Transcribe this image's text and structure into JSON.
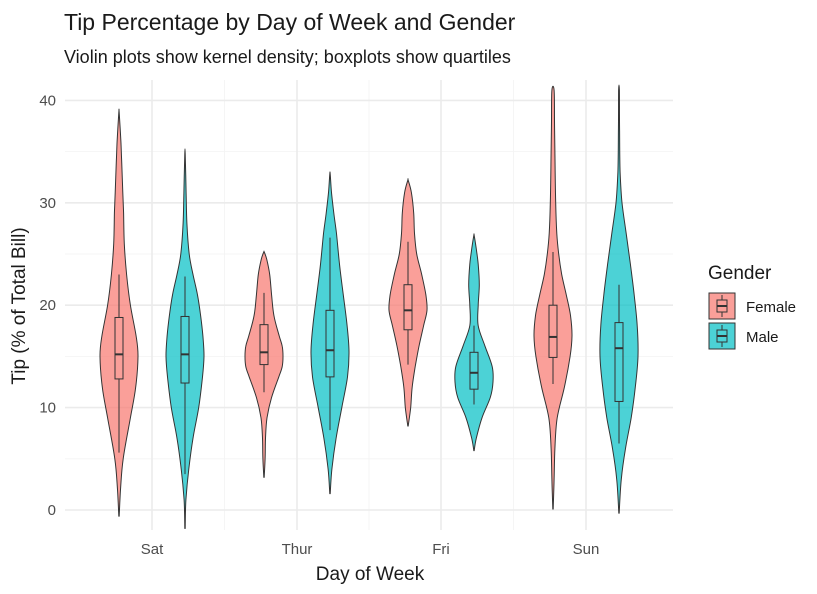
{
  "chart_data": {
    "type": "violin",
    "title": "Tip Percentage by Day of Week and Gender",
    "subtitle": "Violin plots show kernel density; boxplots show quartiles",
    "xlabel": "Day of Week",
    "ylabel": "Tip (% of Total Bill)",
    "categories": [
      "Sat",
      "Thur",
      "Fri",
      "Sun"
    ],
    "yticks": [
      "0",
      "10",
      "20",
      "30",
      "40"
    ],
    "ylim": [
      -2,
      41
    ],
    "grid": true,
    "legend": {
      "title": "Gender",
      "position": "right",
      "entries": [
        "Female",
        "Male"
      ]
    },
    "colors": {
      "Female": "#F8766D",
      "Male": "#00BFC4"
    },
    "series": [
      {
        "name": "Female",
        "boxes": [
          {
            "category": "Sat",
            "whisker_low": 5.6,
            "q1": 12.8,
            "median": 15.2,
            "q3": 18.8,
            "whisker_high": 23.0,
            "violin_min": -0.6,
            "violin_max": 38.8,
            "density": [
              [
                -0.6,
                0.01
              ],
              [
                2,
                0.08
              ],
              [
                5,
                0.22
              ],
              [
                9,
                0.6
              ],
              [
                12,
                0.88
              ],
              [
                15,
                1.0
              ],
              [
                17,
                0.9
              ],
              [
                20,
                0.6
              ],
              [
                23,
                0.4
              ],
              [
                26,
                0.28
              ],
              [
                29,
                0.24
              ],
              [
                31,
                0.2
              ],
              [
                34,
                0.14
              ],
              [
                36,
                0.1
              ],
              [
                38.8,
                0.01
              ]
            ]
          },
          {
            "category": "Thur",
            "whisker_low": 11.5,
            "q1": 14.2,
            "median": 15.4,
            "q3": 18.1,
            "whisker_high": 21.2,
            "violin_min": 3.2,
            "violin_max": 25.2,
            "density": [
              [
                3.2,
                0.01
              ],
              [
                5,
                0.06
              ],
              [
                7,
                0.08
              ],
              [
                9,
                0.16
              ],
              [
                11,
                0.4
              ],
              [
                13,
                0.78
              ],
              [
                14,
                0.96
              ],
              [
                15,
                1.0
              ],
              [
                16,
                0.96
              ],
              [
                17,
                0.8
              ],
              [
                19,
                0.52
              ],
              [
                21,
                0.4
              ],
              [
                23,
                0.3
              ],
              [
                24.5,
                0.14
              ],
              [
                25.2,
                0.01
              ]
            ]
          },
          {
            "category": "Fri",
            "whisker_low": 14.2,
            "q1": 17.6,
            "median": 19.5,
            "q3": 22.0,
            "whisker_high": 26.2,
            "violin_min": 8.2,
            "violin_max": 32.2,
            "density": [
              [
                8.2,
                0.01
              ],
              [
                10,
                0.14
              ],
              [
                12,
                0.22
              ],
              [
                14,
                0.38
              ],
              [
                16,
                0.58
              ],
              [
                18,
                0.82
              ],
              [
                19.5,
                1.0
              ],
              [
                21,
                0.94
              ],
              [
                23,
                0.72
              ],
              [
                25,
                0.46
              ],
              [
                27,
                0.34
              ],
              [
                29,
                0.3
              ],
              [
                31,
                0.18
              ],
              [
                32.2,
                0.01
              ]
            ]
          },
          {
            "category": "Sun",
            "whisker_low": 12.3,
            "q1": 14.9,
            "median": 16.9,
            "q3": 20.0,
            "whisker_high": 25.2,
            "violin_min": 0.1,
            "violin_max": 41,
            "density": [
              [
                0.1,
                0.01
              ],
              [
                3,
                0.06
              ],
              [
                6,
                0.1
              ],
              [
                9,
                0.22
              ],
              [
                12,
                0.6
              ],
              [
                15,
                0.9
              ],
              [
                17,
                1.0
              ],
              [
                19,
                0.92
              ],
              [
                21,
                0.7
              ],
              [
                23,
                0.46
              ],
              [
                25,
                0.3
              ],
              [
                27,
                0.2
              ],
              [
                30,
                0.14
              ],
              [
                35,
                0.1
              ],
              [
                38,
                0.08
              ],
              [
                41,
                0.06
              ]
            ]
          }
        ]
      },
      {
        "name": "Male",
        "boxes": [
          {
            "category": "Sat",
            "whisker_low": 3.5,
            "q1": 12.4,
            "median": 15.2,
            "q3": 18.9,
            "whisker_high": 22.8,
            "violin_min": -1.8,
            "violin_max": 34.8,
            "density": [
              [
                -1.8,
                0.01
              ],
              [
                1,
                0.05
              ],
              [
                4,
                0.2
              ],
              [
                7,
                0.42
              ],
              [
                10,
                0.72
              ],
              [
                13,
                0.92
              ],
              [
                15,
                1.0
              ],
              [
                17,
                0.94
              ],
              [
                19,
                0.82
              ],
              [
                21,
                0.66
              ],
              [
                23,
                0.42
              ],
              [
                25,
                0.22
              ],
              [
                28,
                0.1
              ],
              [
                31,
                0.06
              ],
              [
                34.8,
                0.01
              ]
            ]
          },
          {
            "category": "Thur",
            "whisker_low": 7.8,
            "q1": 13.0,
            "median": 15.6,
            "q3": 19.5,
            "whisker_high": 26.6,
            "violin_min": 1.6,
            "violin_max": 32.8,
            "density": [
              [
                1.6,
                0.01
              ],
              [
                4,
                0.1
              ],
              [
                7,
                0.32
              ],
              [
                10,
                0.62
              ],
              [
                13,
                0.92
              ],
              [
                15.5,
                1.0
              ],
              [
                18,
                0.9
              ],
              [
                21,
                0.7
              ],
              [
                24,
                0.5
              ],
              [
                27,
                0.34
              ],
              [
                29,
                0.2
              ],
              [
                31,
                0.08
              ],
              [
                32.8,
                0.01
              ]
            ]
          },
          {
            "category": "Fri",
            "whisker_low": 10.3,
            "q1": 11.8,
            "median": 13.4,
            "q3": 15.4,
            "whisker_high": 18.0,
            "violin_min": 5.8,
            "violin_max": 26.8,
            "density": [
              [
                5.8,
                0.01
              ],
              [
                7,
                0.12
              ],
              [
                9,
                0.42
              ],
              [
                11,
                0.86
              ],
              [
                12.5,
                1.0
              ],
              [
                14,
                0.96
              ],
              [
                16,
                0.58
              ],
              [
                18,
                0.22
              ],
              [
                20,
                0.22
              ],
              [
                22,
                0.28
              ],
              [
                24,
                0.22
              ],
              [
                25.5,
                0.12
              ],
              [
                26.8,
                0.01
              ]
            ]
          },
          {
            "category": "Sun",
            "whisker_low": 6.5,
            "q1": 10.6,
            "median": 15.8,
            "q3": 18.3,
            "whisker_high": 22.0,
            "violin_min": -0.3,
            "violin_max": 41,
            "density": [
              [
                -0.3,
                0.01
              ],
              [
                3,
                0.12
              ],
              [
                6,
                0.34
              ],
              [
                9,
                0.64
              ],
              [
                12,
                0.86
              ],
              [
                15,
                1.0
              ],
              [
                18,
                0.96
              ],
              [
                21,
                0.8
              ],
              [
                24,
                0.6
              ],
              [
                27,
                0.38
              ],
              [
                30,
                0.16
              ],
              [
                33,
                0.06
              ],
              [
                37,
                0.03
              ],
              [
                41,
                0.02
              ]
            ]
          }
        ]
      }
    ]
  }
}
